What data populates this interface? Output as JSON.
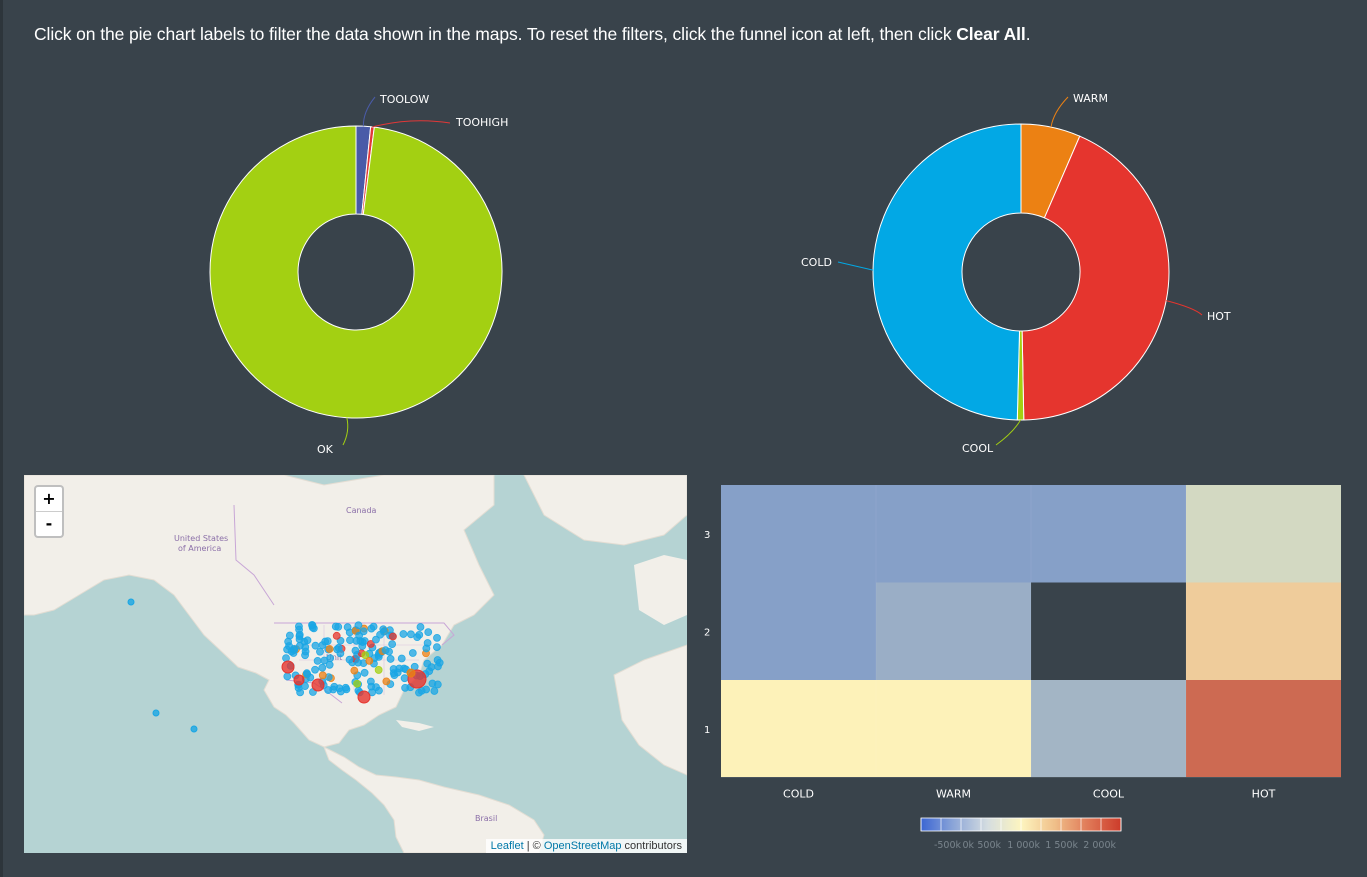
{
  "instructions": {
    "text_before": "Click on the pie chart labels to filter the data shown in the maps. To reset the filters, click the funnel icon at left, then click ",
    "bold": "Clear All",
    "text_after": "."
  },
  "chart_data": [
    {
      "type": "pie",
      "donut": true,
      "slices": [
        {
          "label": "TOOLOW",
          "value": 1.6,
          "color": "#4a5ba8"
        },
        {
          "label": "TOOHIGH",
          "value": 0.4,
          "color": "#e13838"
        },
        {
          "label": "OK",
          "value": 98.0,
          "color": "#a3d012"
        }
      ]
    },
    {
      "type": "pie",
      "donut": true,
      "slices": [
        {
          "label": "WARM",
          "value": 6.5,
          "color": "#ec8113"
        },
        {
          "label": "HOT",
          "value": 43.2,
          "color": "#e5352e"
        },
        {
          "label": "COOL",
          "value": 0.7,
          "color": "#a3d012"
        },
        {
          "label": "COLD",
          "value": 49.6,
          "color": "#02a8e5"
        }
      ]
    },
    {
      "type": "heatmap",
      "x_categories": [
        "COLD",
        "WARM",
        "COOL",
        "HOT"
      ],
      "y_categories": [
        "1",
        "2",
        "3"
      ],
      "cells": [
        {
          "x": "COLD",
          "y": "3",
          "color": "#86a0c8"
        },
        {
          "x": "WARM",
          "y": "3",
          "color": "#86a0c8"
        },
        {
          "x": "COOL",
          "y": "3",
          "color": "#86a0c8"
        },
        {
          "x": "HOT",
          "y": "3",
          "color": "#d3d9c2"
        },
        {
          "x": "COLD",
          "y": "2",
          "color": "#86a0c8"
        },
        {
          "x": "WARM",
          "y": "2",
          "color": "#9aaec6"
        },
        {
          "x": "HOT",
          "y": "2",
          "color": "#efcc9b"
        },
        {
          "x": "COLD",
          "y": "1",
          "color": "#fdf2b9"
        },
        {
          "x": "WARM",
          "y": "1",
          "color": "#fdf2b9"
        },
        {
          "x": "COOL",
          "y": "1",
          "color": "#a3b5c5"
        },
        {
          "x": "HOT",
          "y": "1",
          "color": "#cd6a52"
        }
      ],
      "legend": {
        "tick_labels": [
          "-500k",
          "0k",
          "500k",
          "1 000k",
          "1 500k",
          "2 000k"
        ],
        "colors": [
          "#3b66d3",
          "#8ea7d8",
          "#d5dde0",
          "#fdf5c0",
          "#f0c08a",
          "#e07a58",
          "#cc3b2a"
        ]
      }
    }
  ],
  "map": {
    "zoom_in": "+",
    "zoom_out": "-",
    "labels": {
      "canada": "Canada",
      "usa_1": "United States",
      "usa_2": "of America",
      "usa_short": "Unit",
      "brasil": "Brasil"
    },
    "attribution": {
      "leaflet": "Leaflet",
      "sep": " | © ",
      "osm": "OpenStreetMap",
      "suffix": " contributors"
    },
    "marker_colors": {
      "cold": "#1aa6e4",
      "warm": "#ec8113",
      "hot": "#e5352e",
      "cool": "#a3d012"
    }
  }
}
